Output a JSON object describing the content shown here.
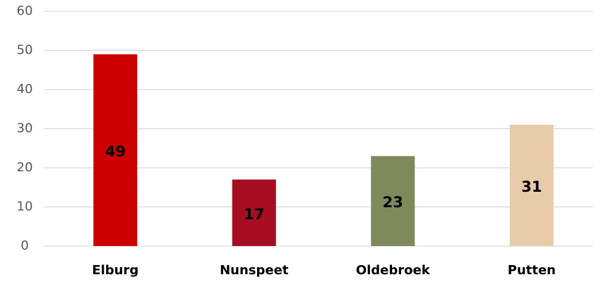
{
  "chart_data": {
    "type": "bar",
    "categories": [
      "Elburg",
      "Nunspeet",
      "Oldebroek",
      "Putten"
    ],
    "values": [
      49,
      17,
      23,
      31
    ],
    "colors": [
      "#cc0000",
      "#a50e20",
      "#7f8a5c",
      "#e8cbab"
    ],
    "ylim": [
      0,
      60
    ],
    "yticks": [
      0,
      10,
      20,
      30,
      40,
      50,
      60
    ],
    "grid": true
  }
}
